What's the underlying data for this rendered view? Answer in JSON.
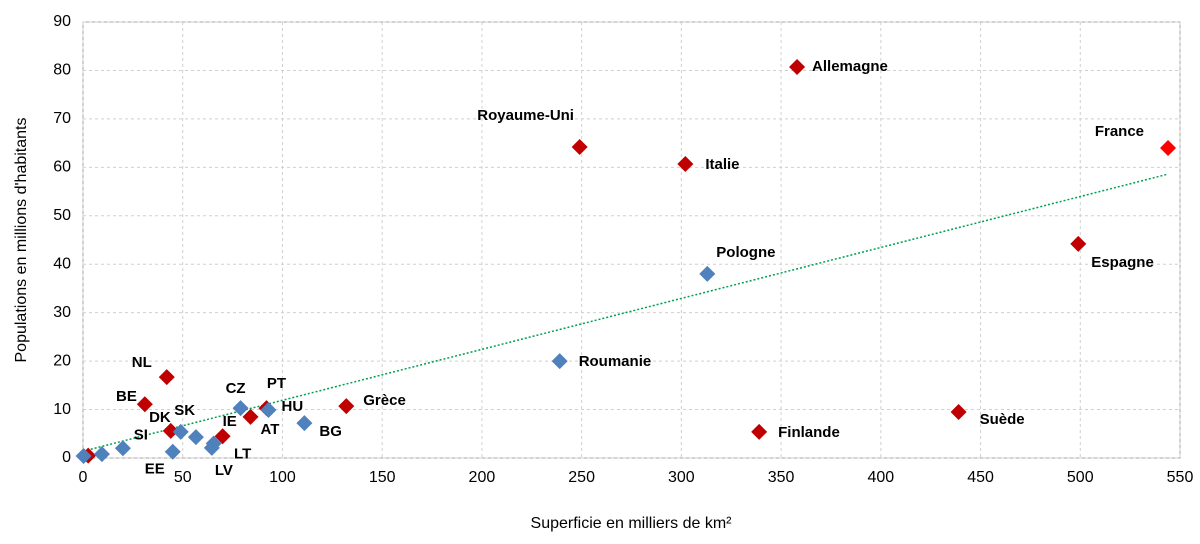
{
  "chart_data": {
    "type": "scatter",
    "xlabel": "Superficie en milliers de km²",
    "ylabel": "Populations en millions d'habitants",
    "xlim": [
      0,
      550
    ],
    "xticks": [
      0,
      50,
      100,
      150,
      200,
      250,
      300,
      350,
      400,
      450,
      500,
      550
    ],
    "ylim": [
      0,
      90
    ],
    "yticks": [
      0,
      10,
      20,
      30,
      40,
      50,
      60,
      70,
      80,
      90
    ],
    "grid": true,
    "series": [
      {
        "color": "#c00000",
        "label_color": "#993300",
        "labels": [
          "Allemagne",
          "Royaume-Uni",
          "Italie",
          "Espagne",
          "Suède",
          "Finlande",
          "Grèce",
          "NL",
          "BE",
          "DK",
          "PT",
          "AT",
          "IE",
          null
        ],
        "x": [
          358,
          249,
          302,
          499,
          439,
          339,
          132,
          42,
          31,
          44,
          92,
          84,
          70,
          2.6
        ],
        "values": [
          80.7,
          64.2,
          60.7,
          44.2,
          9.5,
          5.4,
          10.7,
          16.7,
          11.1,
          5.6,
          10.3,
          8.5,
          4.5,
          0.5
        ]
      },
      {
        "color": "#ff0000",
        "label_color": "#ff0000",
        "labels": [
          "France"
        ],
        "x": [
          544
        ],
        "values": [
          64
        ]
      },
      {
        "color": "#4f81bd",
        "label_color": "#1f6fc0",
        "labels": [
          "Pologne",
          "Roumanie",
          "CZ",
          "HU",
          "BG",
          "SK",
          "SI",
          "EE",
          "LV",
          "LT",
          null,
          null,
          null
        ],
        "x": [
          313,
          239,
          79,
          93,
          111,
          49,
          20,
          45,
          64.6,
          65.5,
          56.6,
          9.5,
          0.3
        ],
        "values": [
          38,
          20,
          10.3,
          9.9,
          7.2,
          5.4,
          2,
          1.3,
          2.1,
          3,
          4.3,
          0.8,
          0.4
        ]
      }
    ],
    "trendline": {
      "color": "#00a050",
      "x": [
        0,
        544
      ],
      "values": [
        1.4,
        58.6
      ]
    }
  }
}
